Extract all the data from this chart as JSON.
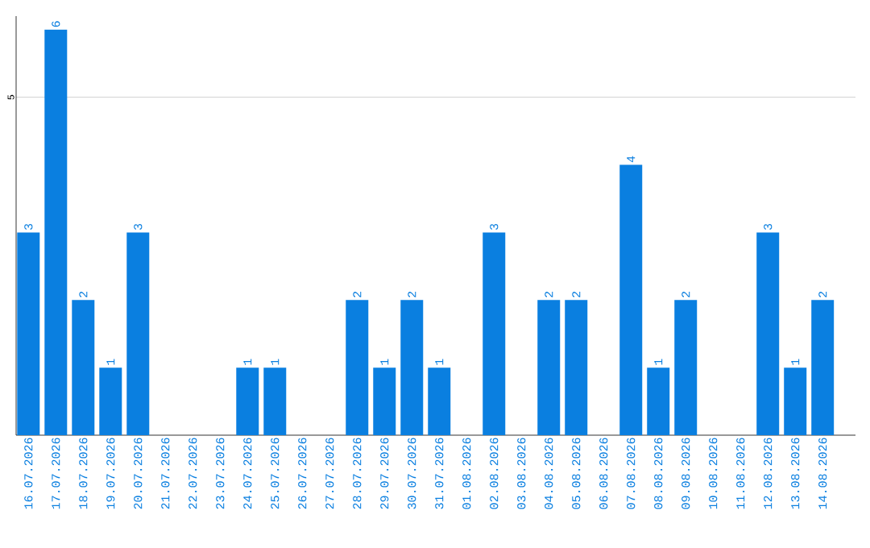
{
  "chart_data": {
    "type": "bar",
    "categories": [
      "16.07.2026",
      "17.07.2026",
      "18.07.2026",
      "19.07.2026",
      "20.07.2026",
      "21.07.2026",
      "22.07.2026",
      "23.07.2026",
      "24.07.2026",
      "25.07.2026",
      "26.07.2026",
      "27.07.2026",
      "28.07.2026",
      "29.07.2026",
      "30.07.2026",
      "31.07.2026",
      "01.08.2026",
      "02.08.2026",
      "03.08.2026",
      "04.08.2026",
      "05.08.2026",
      "06.08.2026",
      "07.08.2026",
      "08.08.2026",
      "09.08.2026",
      "10.08.2026",
      "11.08.2026",
      "12.08.2026",
      "13.08.2026",
      "14.08.2026"
    ],
    "values": [
      3,
      6,
      2,
      1,
      3,
      0,
      0,
      0,
      1,
      1,
      0,
      0,
      2,
      1,
      2,
      1,
      0,
      3,
      0,
      2,
      2,
      0,
      4,
      1,
      2,
      0,
      0,
      3,
      1,
      2
    ],
    "value_labels": [
      "3",
      "6",
      "2",
      "1",
      "3",
      null,
      null,
      null,
      "1",
      "1",
      null,
      null,
      "2",
      "1",
      "2",
      "1",
      null,
      "3",
      null,
      "2",
      "2",
      null,
      "4",
      "1",
      "2",
      null,
      null,
      "3",
      "1",
      "2"
    ],
    "color": "#0a7fe0",
    "ylim": [
      0,
      6.2
    ],
    "yticks": [
      5
    ],
    "grid": "y"
  }
}
